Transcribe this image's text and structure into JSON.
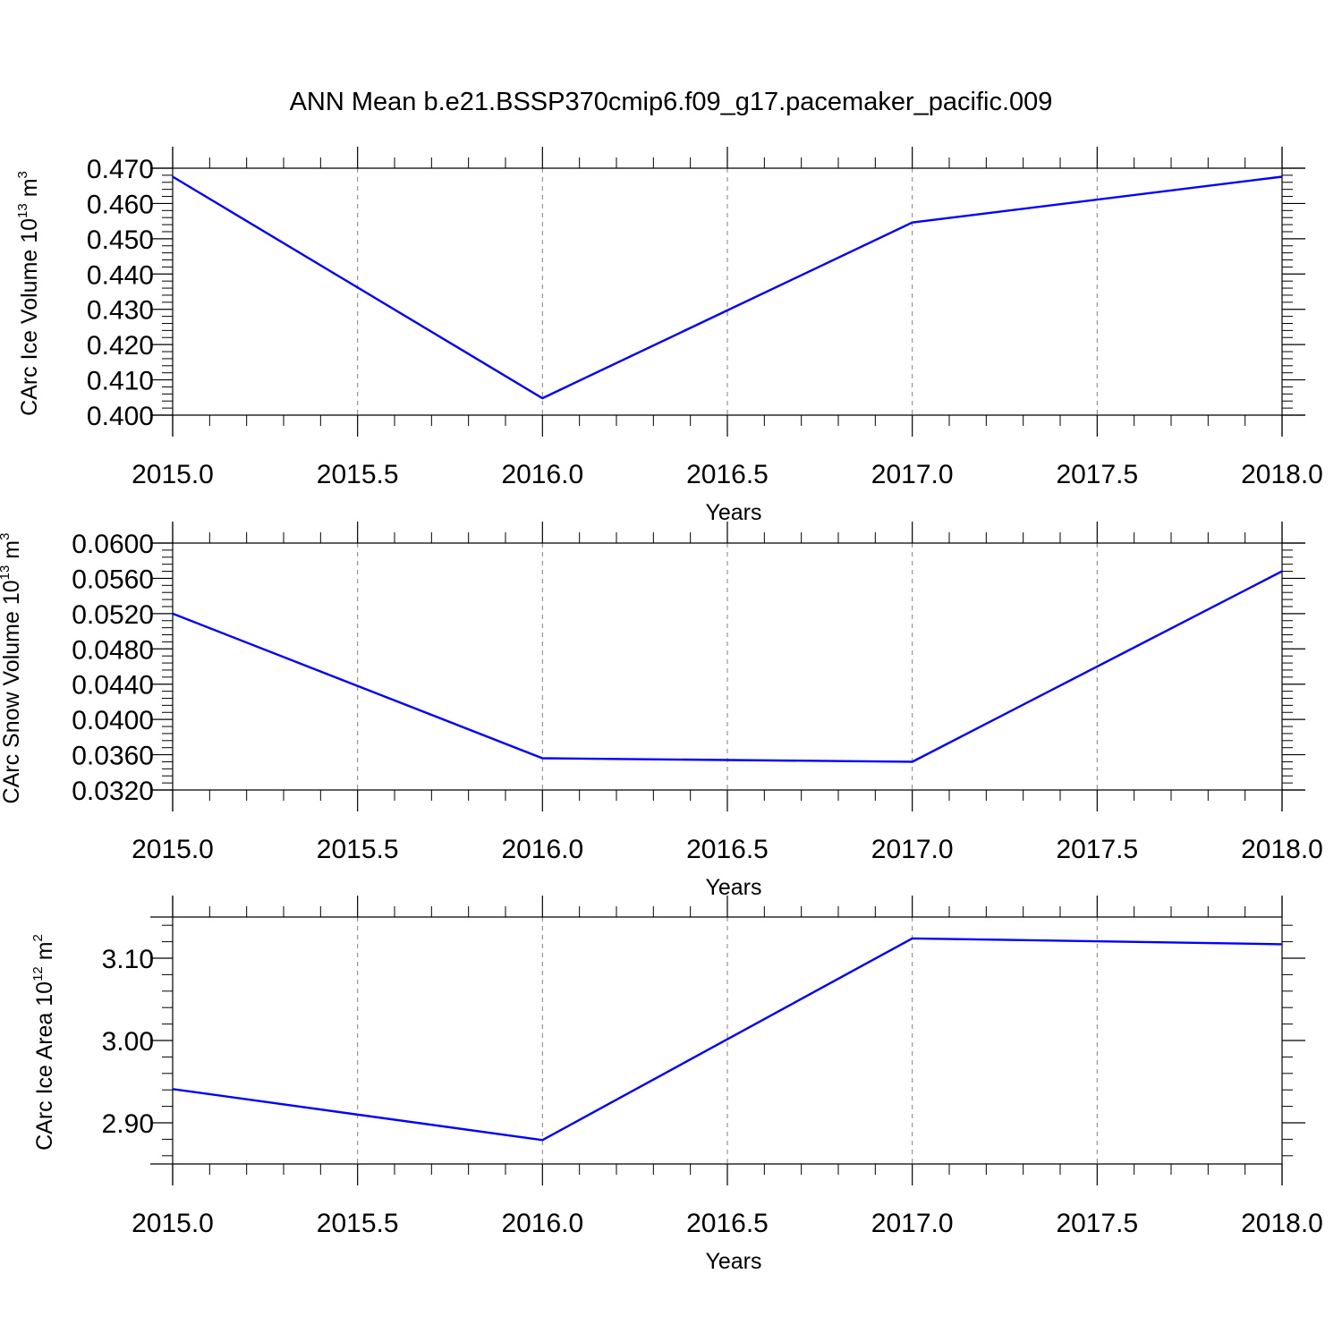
{
  "title": "ANN Mean b.e21.BSSP370cmip6.f09_g17.pacemaker_pacific.009",
  "colors": {
    "line": "#0000ff",
    "axis": "#000000",
    "grid": "#808080"
  },
  "chart_data": [
    {
      "type": "line",
      "xlabel": "Years",
      "ylabel": "CArc Ice Volume 10",
      "ylabel_exp": "13",
      "ylabel_unit": " m",
      "ylabel_unit_exp": "3",
      "xlim": [
        2015.0,
        2018.0
      ],
      "ylim": [
        0.4,
        0.47
      ],
      "xticks": [
        "2015.0",
        "2015.5",
        "2016.0",
        "2016.5",
        "2017.0",
        "2017.5",
        "2018.0"
      ],
      "yticks": [
        "0.400",
        "0.410",
        "0.420",
        "0.430",
        "0.440",
        "0.450",
        "0.460",
        "0.470"
      ],
      "grid": true,
      "x": [
        2015,
        2016,
        2017,
        2018
      ],
      "y": [
        0.4676,
        0.4048,
        0.4546,
        0.4676
      ]
    },
    {
      "type": "line",
      "xlabel": "Years",
      "ylabel": "CArc Snow Volume 10",
      "ylabel_exp": "13",
      "ylabel_unit": " m",
      "ylabel_unit_exp": "3",
      "xlim": [
        2015.0,
        2018.0
      ],
      "ylim": [
        0.032,
        0.06
      ],
      "xticks": [
        "2015.0",
        "2015.5",
        "2016.0",
        "2016.5",
        "2017.0",
        "2017.5",
        "2018.0"
      ],
      "yticks": [
        "0.0320",
        "0.0360",
        "0.0400",
        "0.0440",
        "0.0480",
        "0.0520",
        "0.0560",
        "0.0600"
      ],
      "grid": true,
      "x": [
        2015,
        2016,
        2017,
        2018
      ],
      "y": [
        0.052,
        0.0356,
        0.0352,
        0.0568
      ]
    },
    {
      "type": "line",
      "xlabel": "Years",
      "ylabel": "CArc Ice Area 10",
      "ylabel_exp": "12",
      "ylabel_unit": " m",
      "ylabel_unit_exp": "2",
      "xlim": [
        2015.0,
        2018.0
      ],
      "ylim": [
        2.85,
        3.15
      ],
      "xticks": [
        "2015.0",
        "2015.5",
        "2016.0",
        "2016.5",
        "2017.0",
        "2017.5",
        "2018.0"
      ],
      "yticks": [
        "2.90",
        "3.00",
        "3.10"
      ],
      "grid": true,
      "x": [
        2015,
        2016,
        2017,
        2018
      ],
      "y": [
        2.941,
        2.879,
        3.124,
        3.117
      ]
    }
  ]
}
